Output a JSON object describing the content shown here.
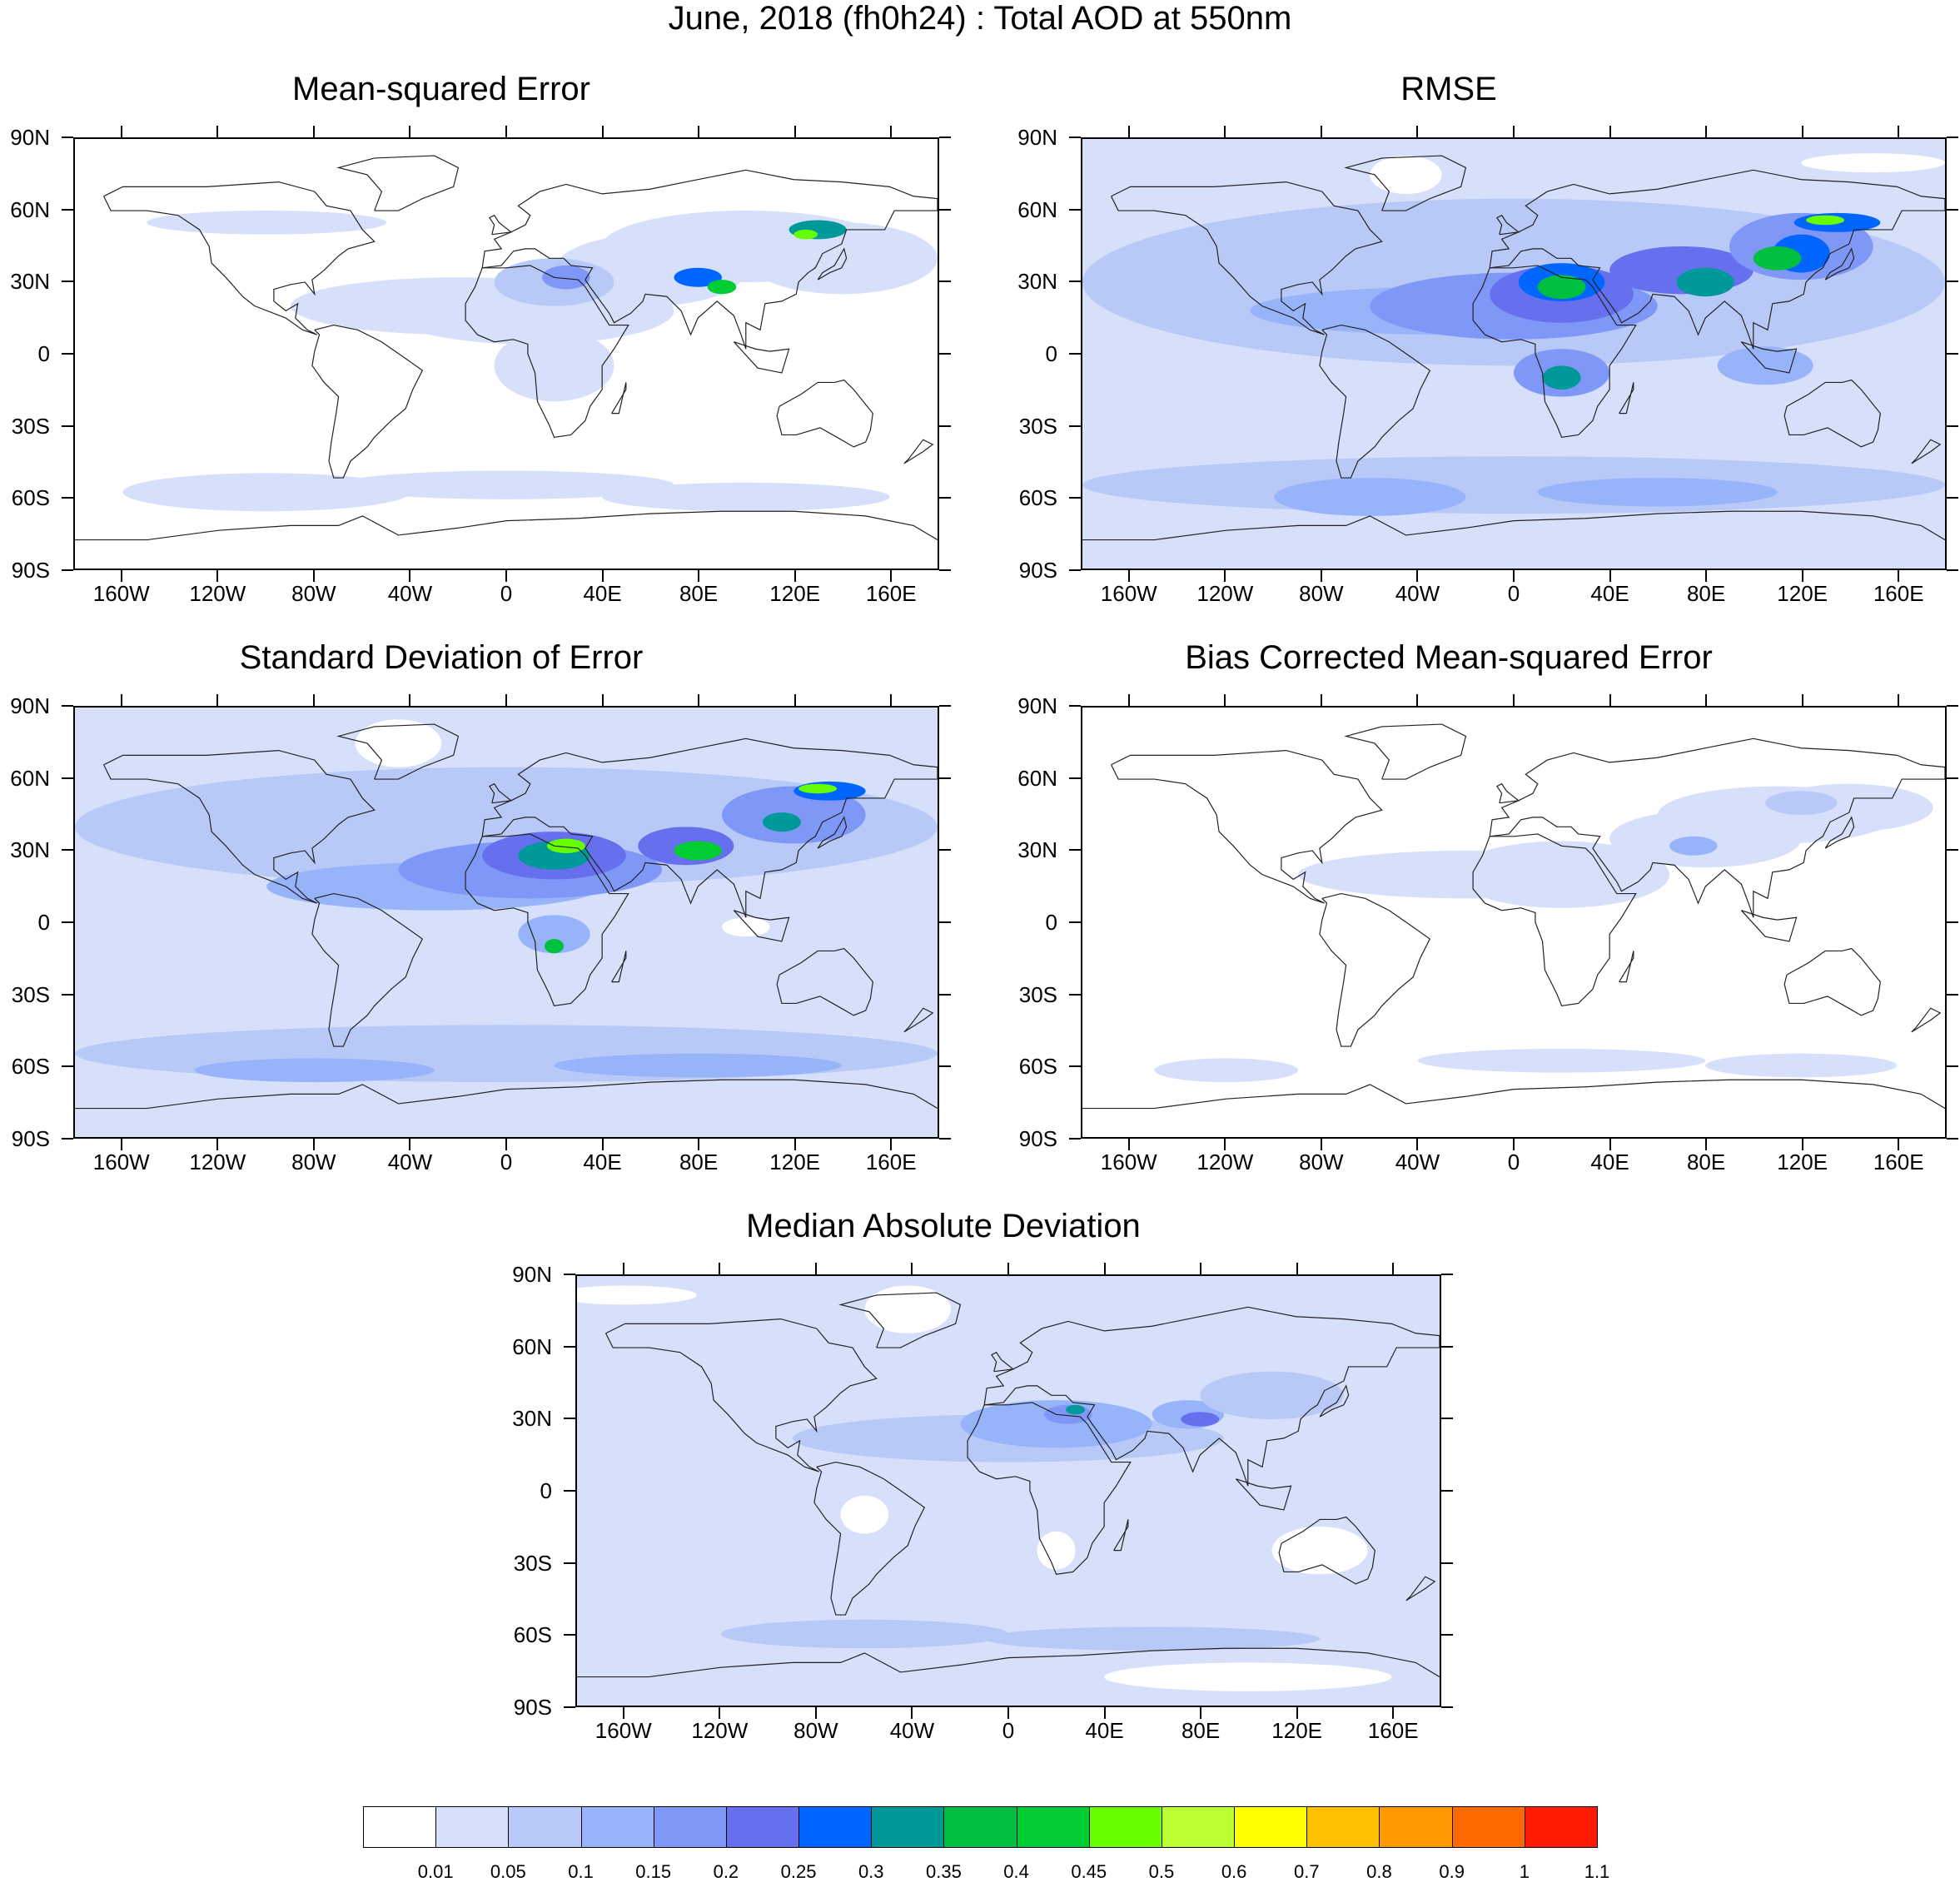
{
  "title": "June, 2018 (fh0h24) : Total AOD at 550nm",
  "lat_labels": [
    "90N",
    "60N",
    "30N",
    "0",
    "30S",
    "60S",
    "90S"
  ],
  "lon_labels": [
    "160W",
    "120W",
    "80W",
    "40W",
    "0",
    "40E",
    "80E",
    "120E",
    "160E"
  ],
  "panels": [
    {
      "key": "mse",
      "title": "Mean-squared Error",
      "background_level": 0
    },
    {
      "key": "rmse",
      "title": "RMSE",
      "background_level": 1
    },
    {
      "key": "std",
      "title": "Standard Deviation of Error",
      "background_level": 1
    },
    {
      "key": "bcmse",
      "title": "Bias Corrected Mean-squared Error",
      "background_level": 0
    },
    {
      "key": "mad",
      "title": "Median Absolute Deviation",
      "background_level": 1
    }
  ],
  "colorbar": {
    "colors": [
      "#ffffff",
      "#d6e0fb",
      "#b9c9f7",
      "#97b3fa",
      "#7f97f6",
      "#6670ee",
      "#0066ff",
      "#009999",
      "#00c040",
      "#00cc33",
      "#66ff00",
      "#bbff33",
      "#ffff00",
      "#ffc000",
      "#ff9900",
      "#ff6a00",
      "#ff1a00"
    ],
    "labels": [
      "0.01",
      "0.05",
      "0.1",
      "0.15",
      "0.2",
      "0.25",
      "0.3",
      "0.35",
      "0.4",
      "0.45",
      "0.5",
      "0.6",
      "0.7",
      "0.8",
      "0.9",
      "1",
      "1.1"
    ]
  }
}
